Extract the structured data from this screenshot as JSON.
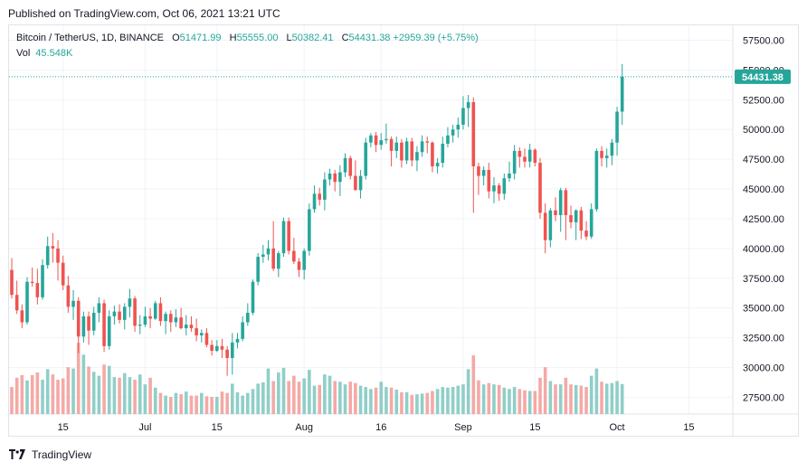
{
  "header": {
    "published": "Published on TradingView.com, Oct 06, 2021 13:21 UTC"
  },
  "legend": {
    "symbol": "Bitcoin / TetherUS, 1D, BINANCE",
    "o_label": "O",
    "o_value": "51471.99",
    "h_label": "H",
    "h_value": "55555.00",
    "l_label": "L",
    "l_value": "50382.41",
    "c_label": "C",
    "c_value": "54431.38",
    "change": "+2959.39 (+5.75%)",
    "vol_label": "Vol",
    "vol_value": "45.548K"
  },
  "footer": {
    "brand": "TradingView"
  },
  "colors": {
    "up": "#26a69a",
    "down": "#ef5350",
    "up_vol": "#8fcfc8",
    "down_vol": "#f4a9a6",
    "grid": "#f0f3fa"
  },
  "chart_data": {
    "type": "candlestick",
    "title": "Bitcoin / TetherUS, 1D, BINANCE",
    "y_range": [
      25500,
      58400
    ],
    "y_ticks": [
      "57500.00",
      "55000.00",
      "52500.00",
      "50000.00",
      "47500.00",
      "45000.00",
      "42500.00",
      "40000.00",
      "37500.00",
      "35000.00",
      "32500.00",
      "30000.00",
      "27500.00"
    ],
    "x_ticks": [
      {
        "label": "15",
        "index": 10
      },
      {
        "label": "Jul",
        "index": 26
      },
      {
        "label": "15",
        "index": 40
      },
      {
        "label": "Aug",
        "index": 57
      },
      {
        "label": "16",
        "index": 72
      },
      {
        "label": "Sep",
        "index": 88
      },
      {
        "label": "15",
        "index": 102
      },
      {
        "label": "Oct",
        "index": 118
      },
      {
        "label": "15",
        "index": 132
      }
    ],
    "last_price": 54431.38,
    "last_price_label": "54431.38",
    "ohlc": [
      [
        38200,
        39200,
        35800,
        36100
      ],
      [
        36100,
        37300,
        34500,
        34800
      ],
      [
        34800,
        35300,
        33300,
        33800
      ],
      [
        33800,
        37600,
        33600,
        37200
      ],
      [
        37200,
        38400,
        36800,
        37100
      ],
      [
        37100,
        38300,
        35300,
        35900
      ],
      [
        35900,
        39100,
        35700,
        38600
      ],
      [
        38600,
        41000,
        38300,
        40200
      ],
      [
        40200,
        41300,
        38800,
        40000
      ],
      [
        40000,
        40700,
        37300,
        38800
      ],
      [
        38800,
        39400,
        36500,
        36900
      ],
      [
        36900,
        37700,
        34600,
        35100
      ],
      [
        35100,
        36500,
        34000,
        35600
      ],
      [
        35600,
        35900,
        31200,
        32600
      ],
      [
        32600,
        34700,
        32100,
        34300
      ],
      [
        34300,
        34700,
        31900,
        33100
      ],
      [
        33100,
        35100,
        32700,
        34600
      ],
      [
        34600,
        35900,
        33800,
        35400
      ],
      [
        35400,
        35700,
        31300,
        31800
      ],
      [
        31800,
        34800,
        31500,
        34300
      ],
      [
        34300,
        35200,
        33600,
        34700
      ],
      [
        34700,
        35300,
        33700,
        34000
      ],
      [
        34000,
        35400,
        33200,
        35100
      ],
      [
        35100,
        36600,
        34200,
        35800
      ],
      [
        35800,
        36000,
        33000,
        33500
      ],
      [
        33500,
        34400,
        32800,
        33600
      ],
      [
        33600,
        35100,
        33400,
        34300
      ],
      [
        34300,
        35000,
        33300,
        34100
      ],
      [
        34100,
        35600,
        34000,
        35400
      ],
      [
        35400,
        35900,
        33500,
        33900
      ],
      [
        33900,
        34700,
        32800,
        34500
      ],
      [
        34500,
        34800,
        33000,
        33800
      ],
      [
        33800,
        34900,
        33400,
        34200
      ],
      [
        34200,
        35000,
        33200,
        33300
      ],
      [
        33300,
        34400,
        32700,
        33600
      ],
      [
        33600,
        34300,
        33000,
        33300
      ],
      [
        33300,
        34100,
        32200,
        32700
      ],
      [
        32700,
        33200,
        32100,
        32900
      ],
      [
        32900,
        33300,
        31700,
        31900
      ],
      [
        31900,
        32300,
        31000,
        31400
      ],
      [
        31400,
        32300,
        31300,
        31800
      ],
      [
        31800,
        32400,
        30800,
        31500
      ],
      [
        31500,
        31800,
        29300,
        30800
      ],
      [
        30800,
        32900,
        29400,
        32100
      ],
      [
        32100,
        32900,
        31600,
        32400
      ],
      [
        32400,
        34300,
        32200,
        33800
      ],
      [
        33800,
        35400,
        33500,
        34600
      ],
      [
        34600,
        37400,
        34400,
        37200
      ],
      [
        37200,
        39600,
        36900,
        39300
      ],
      [
        39300,
        40300,
        38800,
        39500
      ],
      [
        39500,
        40700,
        39000,
        40000
      ],
      [
        40000,
        42300,
        38100,
        38300
      ],
      [
        38300,
        39800,
        37600,
        39600
      ],
      [
        39600,
        42600,
        39300,
        42300
      ],
      [
        42300,
        42600,
        39500,
        39800
      ],
      [
        39800,
        40900,
        38700,
        38900
      ],
      [
        38900,
        39200,
        37600,
        38200
      ],
      [
        38200,
        40000,
        37400,
        39800
      ],
      [
        39800,
        43800,
        39400,
        43300
      ],
      [
        43300,
        45300,
        43000,
        44600
      ],
      [
        44600,
        45100,
        43600,
        44100
      ],
      [
        44100,
        46400,
        43200,
        45800
      ],
      [
        45800,
        46700,
        45300,
        46300
      ],
      [
        46300,
        46600,
        44800,
        45600
      ],
      [
        45600,
        47000,
        44400,
        46400
      ],
      [
        46400,
        48000,
        46000,
        47600
      ],
      [
        47600,
        47800,
        45800,
        46100
      ],
      [
        46100,
        47400,
        44900,
        44900
      ],
      [
        44900,
        46600,
        44200,
        46100
      ],
      [
        46100,
        49300,
        45800,
        48900
      ],
      [
        48900,
        49700,
        48500,
        49500
      ],
      [
        49500,
        49800,
        48100,
        48700
      ],
      [
        48700,
        49700,
        48300,
        49100
      ],
      [
        49100,
        50500,
        48800,
        49200
      ],
      [
        49200,
        49400,
        46900,
        48200
      ],
      [
        48200,
        49400,
        47600,
        48900
      ],
      [
        48900,
        49200,
        46800,
        47400
      ],
      [
        47400,
        49300,
        47100,
        49000
      ],
      [
        49000,
        49300,
        46900,
        47400
      ],
      [
        47400,
        48600,
        46500,
        48100
      ],
      [
        48100,
        49500,
        47700,
        49000
      ],
      [
        49000,
        49400,
        48000,
        48900
      ],
      [
        48900,
        49000,
        46400,
        46900
      ],
      [
        46900,
        47600,
        46300,
        47200
      ],
      [
        47200,
        49400,
        46800,
        48800
      ],
      [
        48800,
        50200,
        48500,
        49500
      ],
      [
        49500,
        50400,
        48900,
        50000
      ],
      [
        50000,
        51000,
        49300,
        50400
      ],
      [
        50400,
        52800,
        50000,
        51800
      ],
      [
        51800,
        52900,
        50200,
        52300
      ],
      [
        52300,
        52700,
        43000,
        46900
      ],
      [
        46900,
        47200,
        44500,
        46100
      ],
      [
        46100,
        46900,
        45300,
        46600
      ],
      [
        46600,
        47200,
        44200,
        44800
      ],
      [
        44800,
        46000,
        43800,
        45300
      ],
      [
        45300,
        45500,
        44000,
        44600
      ],
      [
        44600,
        46300,
        44100,
        45900
      ],
      [
        45900,
        47300,
        45600,
        46300
      ],
      [
        46300,
        48700,
        45800,
        48200
      ],
      [
        48200,
        48500,
        46800,
        47700
      ],
      [
        47700,
        48400,
        46800,
        47300
      ],
      [
        47300,
        48800,
        46800,
        48300
      ],
      [
        48300,
        48400,
        46900,
        47200
      ],
      [
        47200,
        47600,
        42500,
        43000
      ],
      [
        43000,
        43800,
        39600,
        40700
      ],
      [
        40700,
        43400,
        40100,
        43200
      ],
      [
        43200,
        44300,
        42300,
        42800
      ],
      [
        42800,
        45100,
        41400,
        44900
      ],
      [
        44900,
        45100,
        40700,
        42800
      ],
      [
        42800,
        43600,
        41700,
        42200
      ],
      [
        42200,
        43300,
        40700,
        43200
      ],
      [
        43200,
        43500,
        40800,
        41500
      ],
      [
        41500,
        42300,
        40700,
        41000
      ],
      [
        41000,
        43800,
        40800,
        43300
      ],
      [
        43300,
        48400,
        43100,
        48200
      ],
      [
        48200,
        48600,
        46900,
        47600
      ],
      [
        47600,
        48400,
        46800,
        47800
      ],
      [
        47800,
        49200,
        47000,
        48900
      ],
      [
        48900,
        51900,
        47800,
        51500
      ],
      [
        51500,
        55500,
        50400,
        54431.38
      ]
    ],
    "volume": [
      [
        3,
        41
      ],
      [
        4,
        55
      ],
      [
        4,
        59
      ],
      [
        4,
        51
      ],
      [
        4,
        59
      ],
      [
        6,
        63
      ],
      [
        4,
        52
      ],
      [
        6,
        68
      ],
      [
        4,
        60
      ],
      [
        4,
        52
      ],
      [
        4,
        54
      ],
      [
        6,
        71
      ],
      [
        5,
        69
      ],
      [
        9,
        108
      ],
      [
        8,
        90
      ],
      [
        6,
        72
      ],
      [
        5,
        64
      ],
      [
        4,
        58
      ],
      [
        6,
        75
      ],
      [
        6,
        73
      ],
      [
        4,
        56
      ],
      [
        4,
        55
      ],
      [
        5,
        62
      ],
      [
        4,
        56
      ],
      [
        4,
        52
      ],
      [
        5,
        60
      ],
      [
        4,
        45
      ],
      [
        4,
        55
      ],
      [
        4,
        40
      ],
      [
        3,
        32
      ],
      [
        3,
        28
      ],
      [
        2,
        26
      ],
      [
        3,
        32
      ],
      [
        3,
        30
      ],
      [
        3,
        34
      ],
      [
        3,
        28
      ],
      [
        3,
        28
      ],
      [
        3,
        32
      ],
      [
        3,
        27
      ],
      [
        3,
        26
      ],
      [
        2,
        26
      ],
      [
        3,
        34
      ],
      [
        3,
        32
      ],
      [
        4,
        46
      ],
      [
        3,
        33
      ],
      [
        3,
        28
      ],
      [
        3,
        32
      ],
      [
        4,
        38
      ],
      [
        5,
        46
      ],
      [
        5,
        48
      ],
      [
        6,
        69
      ],
      [
        4,
        50
      ],
      [
        5,
        63
      ],
      [
        6,
        70
      ],
      [
        4,
        50
      ],
      [
        5,
        58
      ],
      [
        4,
        49
      ],
      [
        5,
        54
      ],
      [
        6,
        67
      ],
      [
        4,
        43
      ],
      [
        4,
        44
      ],
      [
        5,
        60
      ],
      [
        5,
        58
      ],
      [
        4,
        50
      ],
      [
        4,
        49
      ],
      [
        4,
        45
      ],
      [
        4,
        49
      ],
      [
        4,
        47
      ],
      [
        4,
        43
      ],
      [
        4,
        41
      ],
      [
        3,
        38
      ],
      [
        4,
        40
      ],
      [
        4,
        49
      ],
      [
        4,
        41
      ],
      [
        4,
        40
      ],
      [
        3,
        37
      ],
      [
        3,
        33
      ],
      [
        3,
        33
      ],
      [
        3,
        29
      ],
      [
        3,
        30
      ],
      [
        3,
        31
      ],
      [
        3,
        32
      ],
      [
        3,
        35
      ],
      [
        3,
        38
      ],
      [
        4,
        41
      ],
      [
        4,
        40
      ],
      [
        4,
        41
      ],
      [
        4,
        43
      ],
      [
        4,
        45
      ],
      [
        6,
        68
      ],
      [
        8,
        89
      ],
      [
        4,
        51
      ],
      [
        4,
        45
      ],
      [
        4,
        47
      ],
      [
        4,
        45
      ],
      [
        4,
        44
      ],
      [
        4,
        40
      ],
      [
        4,
        38
      ],
      [
        4,
        41
      ],
      [
        4,
        38
      ],
      [
        3,
        36
      ],
      [
        3,
        35
      ],
      [
        3,
        35
      ],
      [
        5,
        55
      ],
      [
        6,
        71
      ],
      [
        4,
        50
      ],
      [
        4,
        45
      ],
      [
        4,
        45
      ],
      [
        5,
        55
      ],
      [
        4,
        45
      ],
      [
        4,
        44
      ],
      [
        4,
        43
      ],
      [
        4,
        41
      ],
      [
        5,
        58
      ],
      [
        6,
        69
      ],
      [
        4,
        49
      ],
      [
        4,
        46
      ],
      [
        4,
        47
      ],
      [
        4,
        50
      ],
      [
        4,
        45.5
      ]
    ]
  }
}
